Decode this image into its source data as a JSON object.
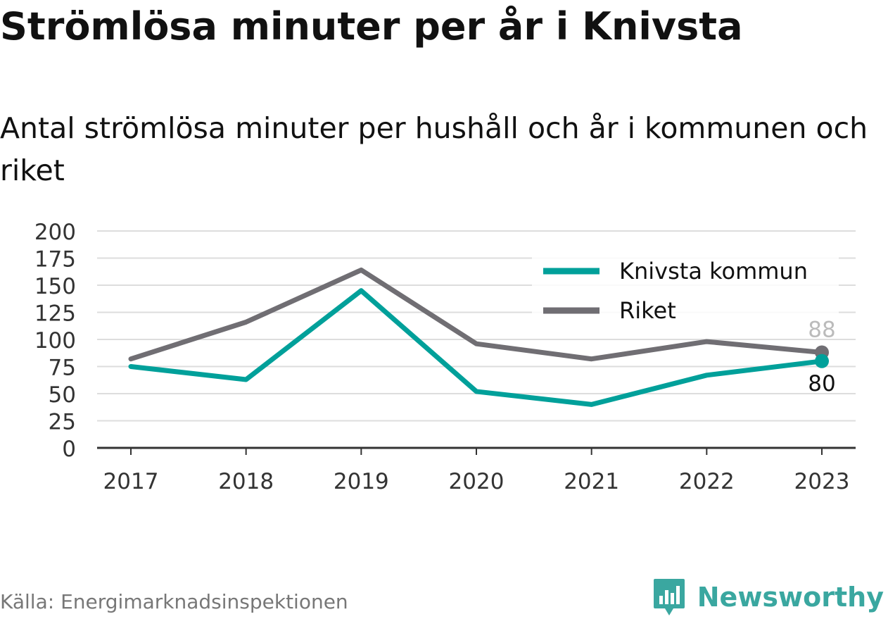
{
  "header": {
    "title": "Strömlösa minuter per år i Knivsta",
    "subtitle": "Antal strömlösa minuter per hushåll och år i kommunen och riket"
  },
  "footer": {
    "source": "Källa: Energimarknadsinspektionen",
    "brand": "Newsworthy",
    "brand_icon": "bar-chart-speech-bubble-icon",
    "brand_color": "#3aa7a0"
  },
  "chart_data": {
    "type": "line",
    "categories": [
      "2017",
      "2018",
      "2019",
      "2020",
      "2021",
      "2022",
      "2023"
    ],
    "series": [
      {
        "name": "Knivsta kommun",
        "color": "#00a09a",
        "values": [
          75,
          63,
          145,
          52,
          40,
          67,
          80
        ],
        "end_label": "80"
      },
      {
        "name": "Riket",
        "color": "#706e73",
        "values": [
          82,
          116,
          164,
          96,
          82,
          98,
          88
        ],
        "end_label": "88"
      }
    ],
    "ylim": [
      0,
      200
    ],
    "yticks": [
      0,
      25,
      50,
      75,
      100,
      125,
      150,
      175,
      200
    ],
    "grid": true,
    "legend_position": "top-right",
    "xlabel": "",
    "ylabel": ""
  }
}
